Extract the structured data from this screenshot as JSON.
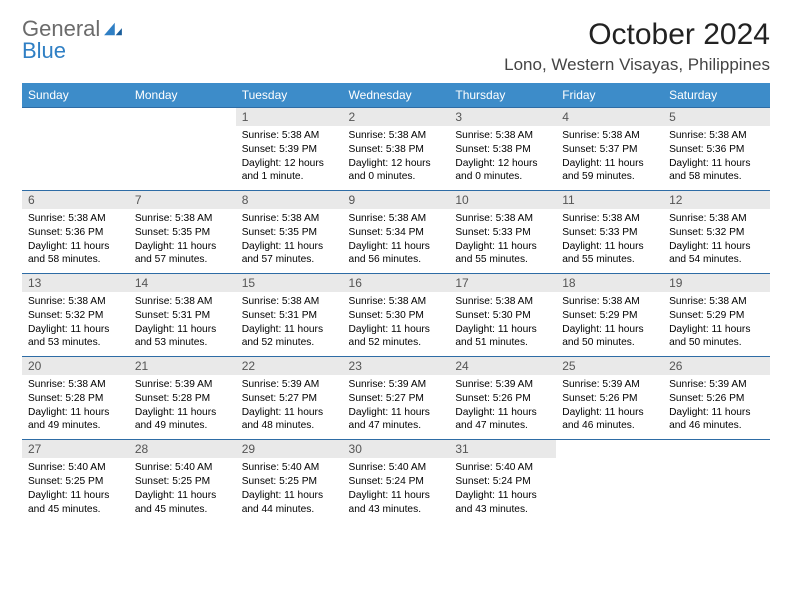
{
  "brand": {
    "part1": "General",
    "part2": "Blue"
  },
  "title": "October 2024",
  "location": "Lono, Western Visayas, Philippines",
  "colors": {
    "header_bg": "#3d8cc9",
    "header_text": "#ffffff",
    "daynum_bg": "#e9e9e9",
    "border": "#2e6ca5",
    "logo_gray": "#6b6b6b",
    "logo_blue": "#2f7fc4"
  },
  "typography": {
    "title_fontsize": 30,
    "location_fontsize": 17,
    "weekday_fontsize": 12,
    "daynum_fontsize": 12,
    "cell_fontsize": 10.2
  },
  "weekdays": [
    "Sunday",
    "Monday",
    "Tuesday",
    "Wednesday",
    "Thursday",
    "Friday",
    "Saturday"
  ],
  "weeks": [
    [
      null,
      null,
      {
        "n": "1",
        "sr": "5:38 AM",
        "ss": "5:39 PM",
        "dl": "12 hours and 1 minute."
      },
      {
        "n": "2",
        "sr": "5:38 AM",
        "ss": "5:38 PM",
        "dl": "12 hours and 0 minutes."
      },
      {
        "n": "3",
        "sr": "5:38 AM",
        "ss": "5:38 PM",
        "dl": "12 hours and 0 minutes."
      },
      {
        "n": "4",
        "sr": "5:38 AM",
        "ss": "5:37 PM",
        "dl": "11 hours and 59 minutes."
      },
      {
        "n": "5",
        "sr": "5:38 AM",
        "ss": "5:36 PM",
        "dl": "11 hours and 58 minutes."
      }
    ],
    [
      {
        "n": "6",
        "sr": "5:38 AM",
        "ss": "5:36 PM",
        "dl": "11 hours and 58 minutes."
      },
      {
        "n": "7",
        "sr": "5:38 AM",
        "ss": "5:35 PM",
        "dl": "11 hours and 57 minutes."
      },
      {
        "n": "8",
        "sr": "5:38 AM",
        "ss": "5:35 PM",
        "dl": "11 hours and 57 minutes."
      },
      {
        "n": "9",
        "sr": "5:38 AM",
        "ss": "5:34 PM",
        "dl": "11 hours and 56 minutes."
      },
      {
        "n": "10",
        "sr": "5:38 AM",
        "ss": "5:33 PM",
        "dl": "11 hours and 55 minutes."
      },
      {
        "n": "11",
        "sr": "5:38 AM",
        "ss": "5:33 PM",
        "dl": "11 hours and 55 minutes."
      },
      {
        "n": "12",
        "sr": "5:38 AM",
        "ss": "5:32 PM",
        "dl": "11 hours and 54 minutes."
      }
    ],
    [
      {
        "n": "13",
        "sr": "5:38 AM",
        "ss": "5:32 PM",
        "dl": "11 hours and 53 minutes."
      },
      {
        "n": "14",
        "sr": "5:38 AM",
        "ss": "5:31 PM",
        "dl": "11 hours and 53 minutes."
      },
      {
        "n": "15",
        "sr": "5:38 AM",
        "ss": "5:31 PM",
        "dl": "11 hours and 52 minutes."
      },
      {
        "n": "16",
        "sr": "5:38 AM",
        "ss": "5:30 PM",
        "dl": "11 hours and 52 minutes."
      },
      {
        "n": "17",
        "sr": "5:38 AM",
        "ss": "5:30 PM",
        "dl": "11 hours and 51 minutes."
      },
      {
        "n": "18",
        "sr": "5:38 AM",
        "ss": "5:29 PM",
        "dl": "11 hours and 50 minutes."
      },
      {
        "n": "19",
        "sr": "5:38 AM",
        "ss": "5:29 PM",
        "dl": "11 hours and 50 minutes."
      }
    ],
    [
      {
        "n": "20",
        "sr": "5:38 AM",
        "ss": "5:28 PM",
        "dl": "11 hours and 49 minutes."
      },
      {
        "n": "21",
        "sr": "5:39 AM",
        "ss": "5:28 PM",
        "dl": "11 hours and 49 minutes."
      },
      {
        "n": "22",
        "sr": "5:39 AM",
        "ss": "5:27 PM",
        "dl": "11 hours and 48 minutes."
      },
      {
        "n": "23",
        "sr": "5:39 AM",
        "ss": "5:27 PM",
        "dl": "11 hours and 47 minutes."
      },
      {
        "n": "24",
        "sr": "5:39 AM",
        "ss": "5:26 PM",
        "dl": "11 hours and 47 minutes."
      },
      {
        "n": "25",
        "sr": "5:39 AM",
        "ss": "5:26 PM",
        "dl": "11 hours and 46 minutes."
      },
      {
        "n": "26",
        "sr": "5:39 AM",
        "ss": "5:26 PM",
        "dl": "11 hours and 46 minutes."
      }
    ],
    [
      {
        "n": "27",
        "sr": "5:40 AM",
        "ss": "5:25 PM",
        "dl": "11 hours and 45 minutes."
      },
      {
        "n": "28",
        "sr": "5:40 AM",
        "ss": "5:25 PM",
        "dl": "11 hours and 45 minutes."
      },
      {
        "n": "29",
        "sr": "5:40 AM",
        "ss": "5:25 PM",
        "dl": "11 hours and 44 minutes."
      },
      {
        "n": "30",
        "sr": "5:40 AM",
        "ss": "5:24 PM",
        "dl": "11 hours and 43 minutes."
      },
      {
        "n": "31",
        "sr": "5:40 AM",
        "ss": "5:24 PM",
        "dl": "11 hours and 43 minutes."
      },
      null,
      null
    ]
  ],
  "labels": {
    "sunrise": "Sunrise:",
    "sunset": "Sunset:",
    "daylight": "Daylight:"
  }
}
